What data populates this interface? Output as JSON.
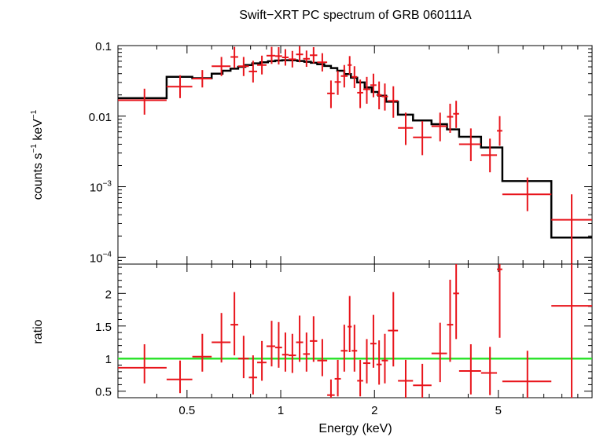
{
  "chart_data": [
    {
      "type": "scatter",
      "panel": "spectrum",
      "title": "Swift−XRT PC spectrum of GRB 060111A",
      "xlabel": "Energy (keV)",
      "ylabel_base": "counts s",
      "ylabel_sup1": "−1",
      "ylabel_mid": " keV",
      "ylabel_sup2": "−1",
      "xscale": "log",
      "yscale": "log",
      "xlim": [
        0.3,
        10
      ],
      "ylim": [
        8e-05,
        0.1
      ],
      "y_tick_labels": [
        {
          "value": 0.1,
          "label": "0.1"
        },
        {
          "value": 0.01,
          "label": "0.01"
        },
        {
          "value": 0.001,
          "base": "10",
          "sup": "−3"
        },
        {
          "value": 0.0001,
          "base": "10",
          "sup": "−4"
        }
      ],
      "data_color": "#e8141b",
      "model_color": "#000000",
      "data": [
        {
          "x": 0.365,
          "xlo": 0.3,
          "xhi": 0.43,
          "y": 0.0168,
          "ylo": 0.0105,
          "yhi": 0.0245
        },
        {
          "x": 0.475,
          "xlo": 0.43,
          "xhi": 0.52,
          "y": 0.0262,
          "ylo": 0.018,
          "yhi": 0.038
        },
        {
          "x": 0.56,
          "xlo": 0.52,
          "xhi": 0.6,
          "y": 0.034,
          "ylo": 0.0255,
          "yhi": 0.045
        },
        {
          "x": 0.645,
          "xlo": 0.6,
          "xhi": 0.69,
          "y": 0.051,
          "ylo": 0.037,
          "yhi": 0.069
        },
        {
          "x": 0.71,
          "xlo": 0.69,
          "xhi": 0.73,
          "y": 0.069,
          "ylo": 0.048,
          "yhi": 0.096
        },
        {
          "x": 0.76,
          "xlo": 0.73,
          "xhi": 0.79,
          "y": 0.051,
          "ylo": 0.037,
          "yhi": 0.069
        },
        {
          "x": 0.815,
          "xlo": 0.79,
          "xhi": 0.84,
          "y": 0.043,
          "ylo": 0.03,
          "yhi": 0.061
        },
        {
          "x": 0.87,
          "xlo": 0.84,
          "xhi": 0.9,
          "y": 0.053,
          "ylo": 0.039,
          "yhi": 0.072
        },
        {
          "x": 0.935,
          "xlo": 0.9,
          "xhi": 0.96,
          "y": 0.072,
          "ylo": 0.055,
          "yhi": 0.096
        },
        {
          "x": 0.985,
          "xlo": 0.96,
          "xhi": 1.01,
          "y": 0.071,
          "ylo": 0.054,
          "yhi": 0.095
        },
        {
          "x": 1.035,
          "xlo": 1.01,
          "xhi": 1.06,
          "y": 0.068,
          "ylo": 0.052,
          "yhi": 0.089
        },
        {
          "x": 1.09,
          "xlo": 1.06,
          "xhi": 1.12,
          "y": 0.064,
          "ylo": 0.049,
          "yhi": 0.084
        },
        {
          "x": 1.15,
          "xlo": 1.12,
          "xhi": 1.18,
          "y": 0.075,
          "ylo": 0.058,
          "yhi": 0.098
        },
        {
          "x": 1.21,
          "xlo": 1.18,
          "xhi": 1.24,
          "y": 0.065,
          "ylo": 0.05,
          "yhi": 0.085
        },
        {
          "x": 1.275,
          "xlo": 1.24,
          "xhi": 1.31,
          "y": 0.073,
          "ylo": 0.056,
          "yhi": 0.095
        },
        {
          "x": 1.36,
          "xlo": 1.31,
          "xhi": 1.41,
          "y": 0.058,
          "ylo": 0.043,
          "yhi": 0.078
        },
        {
          "x": 1.45,
          "xlo": 1.41,
          "xhi": 1.49,
          "y": 0.021,
          "ylo": 0.013,
          "yhi": 0.032
        },
        {
          "x": 1.525,
          "xlo": 1.49,
          "xhi": 1.56,
          "y": 0.0305,
          "ylo": 0.02,
          "yhi": 0.044
        },
        {
          "x": 1.6,
          "xlo": 1.56,
          "xhi": 1.64,
          "y": 0.037,
          "ylo": 0.0255,
          "yhi": 0.053
        },
        {
          "x": 1.665,
          "xlo": 1.64,
          "xhi": 1.69,
          "y": 0.053,
          "ylo": 0.039,
          "yhi": 0.071
        },
        {
          "x": 1.725,
          "xlo": 1.69,
          "xhi": 1.76,
          "y": 0.036,
          "ylo": 0.025,
          "yhi": 0.051
        },
        {
          "x": 1.8,
          "xlo": 1.76,
          "xhi": 1.84,
          "y": 0.0215,
          "ylo": 0.013,
          "yhi": 0.033
        },
        {
          "x": 1.89,
          "xlo": 1.84,
          "xhi": 1.94,
          "y": 0.024,
          "ylo": 0.015,
          "yhi": 0.036
        },
        {
          "x": 1.985,
          "xlo": 1.94,
          "xhi": 2.03,
          "y": 0.0275,
          "ylo": 0.0185,
          "yhi": 0.04
        },
        {
          "x": 2.07,
          "xlo": 2.03,
          "xhi": 2.11,
          "y": 0.02,
          "ylo": 0.0125,
          "yhi": 0.031
        },
        {
          "x": 2.16,
          "xlo": 2.11,
          "xhi": 2.21,
          "y": 0.019,
          "ylo": 0.012,
          "yhi": 0.029
        },
        {
          "x": 2.3,
          "xlo": 2.21,
          "xhi": 2.38,
          "y": 0.0165,
          "ylo": 0.0095,
          "yhi": 0.0265
        },
        {
          "x": 2.52,
          "xlo": 2.38,
          "xhi": 2.66,
          "y": 0.0068,
          "ylo": 0.0039,
          "yhi": 0.0112
        },
        {
          "x": 2.85,
          "xlo": 2.66,
          "xhi": 3.05,
          "y": 0.005,
          "ylo": 0.0028,
          "yhi": 0.0085
        },
        {
          "x": 3.25,
          "xlo": 3.05,
          "xhi": 3.42,
          "y": 0.0072,
          "ylo": 0.0044,
          "yhi": 0.0112
        },
        {
          "x": 3.5,
          "xlo": 3.42,
          "xhi": 3.58,
          "y": 0.0098,
          "ylo": 0.0058,
          "yhi": 0.015
        },
        {
          "x": 3.66,
          "xlo": 3.58,
          "xhi": 3.74,
          "y": 0.0108,
          "ylo": 0.0068,
          "yhi": 0.0165
        },
        {
          "x": 4.08,
          "xlo": 3.74,
          "xhi": 4.4,
          "y": 0.004,
          "ylo": 0.0023,
          "yhi": 0.0067
        },
        {
          "x": 4.7,
          "xlo": 4.4,
          "xhi": 4.95,
          "y": 0.0028,
          "ylo": 0.0016,
          "yhi": 0.0048
        },
        {
          "x": 5.05,
          "xlo": 4.95,
          "xhi": 5.15,
          "y": 0.0062,
          "ylo": 0.0038,
          "yhi": 0.01
        },
        {
          "x": 6.2,
          "xlo": 5.15,
          "xhi": 7.4,
          "y": 0.00078,
          "ylo": 0.00045,
          "yhi": 0.00135
        },
        {
          "x": 8.6,
          "xlo": 7.4,
          "xhi": 10.0,
          "y": 0.00034,
          "ylo": 7e-05,
          "yhi": 0.00078
        }
      ],
      "model": [
        {
          "xlo": 0.3,
          "xhi": 0.43,
          "y": 0.018
        },
        {
          "xlo": 0.43,
          "xhi": 0.52,
          "y": 0.036
        },
        {
          "xlo": 0.52,
          "xhi": 0.6,
          "y": 0.0345
        },
        {
          "xlo": 0.6,
          "xhi": 0.65,
          "y": 0.04
        },
        {
          "xlo": 0.65,
          "xhi": 0.69,
          "y": 0.044
        },
        {
          "xlo": 0.69,
          "xhi": 0.73,
          "y": 0.047
        },
        {
          "xlo": 0.73,
          "xhi": 0.77,
          "y": 0.05
        },
        {
          "xlo": 0.77,
          "xhi": 0.81,
          "y": 0.053
        },
        {
          "xlo": 0.81,
          "xhi": 0.86,
          "y": 0.056
        },
        {
          "xlo": 0.86,
          "xhi": 0.91,
          "y": 0.058
        },
        {
          "xlo": 0.91,
          "xhi": 0.96,
          "y": 0.06
        },
        {
          "xlo": 0.96,
          "xhi": 1.01,
          "y": 0.0615
        },
        {
          "xlo": 1.01,
          "xhi": 1.07,
          "y": 0.062
        },
        {
          "xlo": 1.07,
          "xhi": 1.13,
          "y": 0.0618
        },
        {
          "xlo": 1.13,
          "xhi": 1.19,
          "y": 0.0605
        },
        {
          "xlo": 1.19,
          "xhi": 1.25,
          "y": 0.059
        },
        {
          "xlo": 1.25,
          "xhi": 1.31,
          "y": 0.057
        },
        {
          "xlo": 1.31,
          "xhi": 1.38,
          "y": 0.0545
        },
        {
          "xlo": 1.38,
          "xhi": 1.45,
          "y": 0.0515
        },
        {
          "xlo": 1.45,
          "xhi": 1.52,
          "y": 0.048
        },
        {
          "xlo": 1.52,
          "xhi": 1.6,
          "y": 0.044
        },
        {
          "xlo": 1.6,
          "xhi": 1.68,
          "y": 0.0395
        },
        {
          "xlo": 1.68,
          "xhi": 1.76,
          "y": 0.035
        },
        {
          "xlo": 1.76,
          "xhi": 1.86,
          "y": 0.03
        },
        {
          "xlo": 1.86,
          "xhi": 1.96,
          "y": 0.0255
        },
        {
          "xlo": 1.96,
          "xhi": 2.06,
          "y": 0.022
        },
        {
          "xlo": 2.06,
          "xhi": 2.18,
          "y": 0.0195
        },
        {
          "xlo": 2.18,
          "xhi": 2.38,
          "y": 0.016
        },
        {
          "xlo": 2.38,
          "xhi": 2.66,
          "y": 0.0105
        },
        {
          "xlo": 2.66,
          "xhi": 3.05,
          "y": 0.0087
        },
        {
          "xlo": 3.05,
          "xhi": 3.42,
          "y": 0.0077
        },
        {
          "xlo": 3.42,
          "xhi": 3.74,
          "y": 0.0065
        },
        {
          "xlo": 3.74,
          "xhi": 4.4,
          "y": 0.0051
        },
        {
          "xlo": 4.4,
          "xhi": 5.15,
          "y": 0.0036
        },
        {
          "xlo": 5.15,
          "xhi": 7.4,
          "y": 0.0012
        },
        {
          "xlo": 7.4,
          "xhi": 10.0,
          "y": 0.00019
        }
      ]
    },
    {
      "type": "scatter",
      "panel": "ratio",
      "ylabel": "ratio",
      "xlabel": "Energy (keV)",
      "xscale": "log",
      "yscale": "linear",
      "xlim": [
        0.3,
        10
      ],
      "ylim": [
        0.4,
        2.45
      ],
      "y_tick_labels": [
        "0.5",
        "1",
        "1.5",
        "2"
      ],
      "x_tick_labels": [
        "0.5",
        "1",
        "2",
        "5"
      ],
      "reference_line": {
        "y": 1,
        "color": "#2ee32e"
      },
      "data_color": "#e8141b",
      "data": [
        {
          "x": 0.365,
          "xlo": 0.3,
          "xhi": 0.43,
          "y": 0.86,
          "ylo": 0.62,
          "yhi": 1.22
        },
        {
          "x": 0.475,
          "xlo": 0.43,
          "xhi": 0.52,
          "y": 0.68,
          "ylo": 0.47,
          "yhi": 0.97
        },
        {
          "x": 0.56,
          "xlo": 0.52,
          "xhi": 0.6,
          "y": 1.03,
          "ylo": 0.8,
          "yhi": 1.38
        },
        {
          "x": 0.645,
          "xlo": 0.6,
          "xhi": 0.69,
          "y": 1.25,
          "ylo": 0.94,
          "yhi": 1.7
        },
        {
          "x": 0.71,
          "xlo": 0.69,
          "xhi": 0.73,
          "y": 1.52,
          "ylo": 1.05,
          "yhi": 2.02
        },
        {
          "x": 0.76,
          "xlo": 0.73,
          "xhi": 0.79,
          "y": 1.0,
          "ylo": 0.7,
          "yhi": 1.35
        },
        {
          "x": 0.815,
          "xlo": 0.79,
          "xhi": 0.84,
          "y": 0.71,
          "ylo": 0.45,
          "yhi": 1.05
        },
        {
          "x": 0.87,
          "xlo": 0.84,
          "xhi": 0.9,
          "y": 0.94,
          "ylo": 0.66,
          "yhi": 1.27
        },
        {
          "x": 0.935,
          "xlo": 0.9,
          "xhi": 0.96,
          "y": 1.19,
          "ylo": 0.88,
          "yhi": 1.58
        },
        {
          "x": 0.985,
          "xlo": 0.96,
          "xhi": 1.01,
          "y": 1.17,
          "ylo": 0.86,
          "yhi": 1.56
        },
        {
          "x": 1.035,
          "xlo": 1.01,
          "xhi": 1.06,
          "y": 1.06,
          "ylo": 0.8,
          "yhi": 1.4
        },
        {
          "x": 1.09,
          "xlo": 1.06,
          "xhi": 1.12,
          "y": 1.05,
          "ylo": 0.78,
          "yhi": 1.38
        },
        {
          "x": 1.15,
          "xlo": 1.12,
          "xhi": 1.18,
          "y": 1.25,
          "ylo": 0.95,
          "yhi": 1.66
        },
        {
          "x": 1.21,
          "xlo": 1.18,
          "xhi": 1.24,
          "y": 1.07,
          "ylo": 0.8,
          "yhi": 1.4
        },
        {
          "x": 1.275,
          "xlo": 1.24,
          "xhi": 1.31,
          "y": 1.27,
          "ylo": 0.95,
          "yhi": 1.65
        },
        {
          "x": 1.36,
          "xlo": 1.31,
          "xhi": 1.41,
          "y": 0.97,
          "ylo": 0.73,
          "yhi": 1.3
        },
        {
          "x": 1.45,
          "xlo": 1.41,
          "xhi": 1.49,
          "y": 0.44,
          "ylo": 0.4,
          "yhi": 0.68
        },
        {
          "x": 1.525,
          "xlo": 1.49,
          "xhi": 1.56,
          "y": 0.69,
          "ylo": 0.42,
          "yhi": 0.98
        },
        {
          "x": 1.6,
          "xlo": 1.56,
          "xhi": 1.64,
          "y": 1.12,
          "ylo": 0.8,
          "yhi": 1.52
        },
        {
          "x": 1.665,
          "xlo": 1.64,
          "xhi": 1.69,
          "y": 1.49,
          "ylo": 1.1,
          "yhi": 1.96
        },
        {
          "x": 1.725,
          "xlo": 1.69,
          "xhi": 1.76,
          "y": 1.12,
          "ylo": 0.8,
          "yhi": 1.52
        },
        {
          "x": 1.8,
          "xlo": 1.76,
          "xhi": 1.84,
          "y": 0.66,
          "ylo": 0.42,
          "yhi": 0.98
        },
        {
          "x": 1.89,
          "xlo": 1.84,
          "xhi": 1.94,
          "y": 0.93,
          "ylo": 0.62,
          "yhi": 1.3
        },
        {
          "x": 1.985,
          "xlo": 1.94,
          "xhi": 2.03,
          "y": 1.23,
          "ylo": 0.86,
          "yhi": 1.67
        },
        {
          "x": 2.07,
          "xlo": 2.03,
          "xhi": 2.11,
          "y": 0.91,
          "ylo": 0.6,
          "yhi": 1.28
        },
        {
          "x": 2.16,
          "xlo": 2.11,
          "xhi": 2.21,
          "y": 0.97,
          "ylo": 0.62,
          "yhi": 1.38
        },
        {
          "x": 2.3,
          "xlo": 2.21,
          "xhi": 2.38,
          "y": 1.43,
          "ylo": 0.88,
          "yhi": 2.02
        },
        {
          "x": 2.52,
          "xlo": 2.38,
          "xhi": 2.66,
          "y": 0.66,
          "ylo": 0.4,
          "yhi": 0.98
        },
        {
          "x": 2.85,
          "xlo": 2.66,
          "xhi": 3.05,
          "y": 0.59,
          "ylo": 0.4,
          "yhi": 0.92
        },
        {
          "x": 3.25,
          "xlo": 3.05,
          "xhi": 3.42,
          "y": 1.08,
          "ylo": 0.64,
          "yhi": 1.55
        },
        {
          "x": 3.5,
          "xlo": 3.42,
          "xhi": 3.58,
          "y": 1.52,
          "ylo": 0.95,
          "yhi": 2.21
        },
        {
          "x": 3.66,
          "xlo": 3.58,
          "xhi": 3.74,
          "y": 2.0,
          "ylo": 1.3,
          "yhi": 2.45
        },
        {
          "x": 4.08,
          "xlo": 3.74,
          "xhi": 4.4,
          "y": 0.81,
          "ylo": 0.45,
          "yhi": 1.22
        },
        {
          "x": 4.7,
          "xlo": 4.4,
          "xhi": 4.95,
          "y": 0.78,
          "ylo": 0.44,
          "yhi": 1.18
        },
        {
          "x": 5.05,
          "xlo": 4.95,
          "xhi": 5.15,
          "y": 2.37,
          "ylo": 1.32,
          "yhi": 2.45
        },
        {
          "x": 6.2,
          "xlo": 5.15,
          "xhi": 7.4,
          "y": 0.65,
          "ylo": 0.4,
          "yhi": 1.12
        },
        {
          "x": 8.6,
          "xlo": 7.4,
          "xhi": 10.0,
          "y": 1.81,
          "ylo": 0.4,
          "yhi": 2.45
        }
      ]
    }
  ]
}
